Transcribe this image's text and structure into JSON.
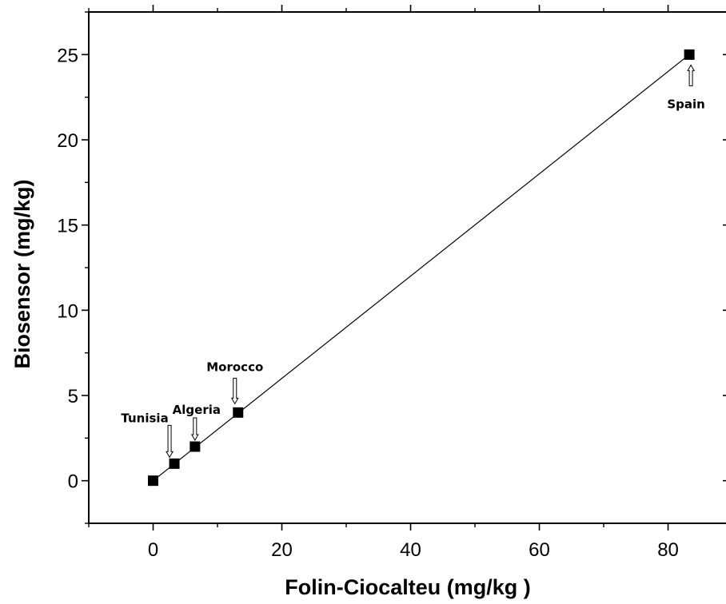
{
  "chart_data": {
    "type": "scatter",
    "xlabel": "Folin-Ciocalteu (mg/kg )",
    "ylabel": "Biosensor (mg/kg)",
    "xlim": [
      -10,
      89
    ],
    "ylim": [
      -2.5,
      27.5
    ],
    "x_ticks": [
      0,
      20,
      40,
      60,
      80
    ],
    "y_ticks": [
      0,
      5,
      10,
      15,
      20,
      25
    ],
    "x_minor_step": 10,
    "y_minor_step": 2.5,
    "grid": false,
    "legend": "none",
    "series": [
      {
        "x": [
          0,
          3.3,
          6.5,
          13.2,
          83.3
        ],
        "y": [
          0,
          1,
          2,
          4,
          25
        ]
      }
    ],
    "fit_line": {
      "x": [
        0,
        83.3
      ],
      "y": [
        0,
        25
      ]
    },
    "annotations": [
      {
        "text": "Tunisia",
        "x": 3.3,
        "y": 1
      },
      {
        "text": "Algeria",
        "x": 6.5,
        "y": 2
      },
      {
        "text": "Morocco",
        "x": 13.2,
        "y": 4
      },
      {
        "text": "Spain",
        "x": 83.3,
        "y": 25
      }
    ],
    "colors": {
      "marker": "#000000",
      "line": "#000000",
      "arrow_fill": "#ffffff"
    }
  }
}
